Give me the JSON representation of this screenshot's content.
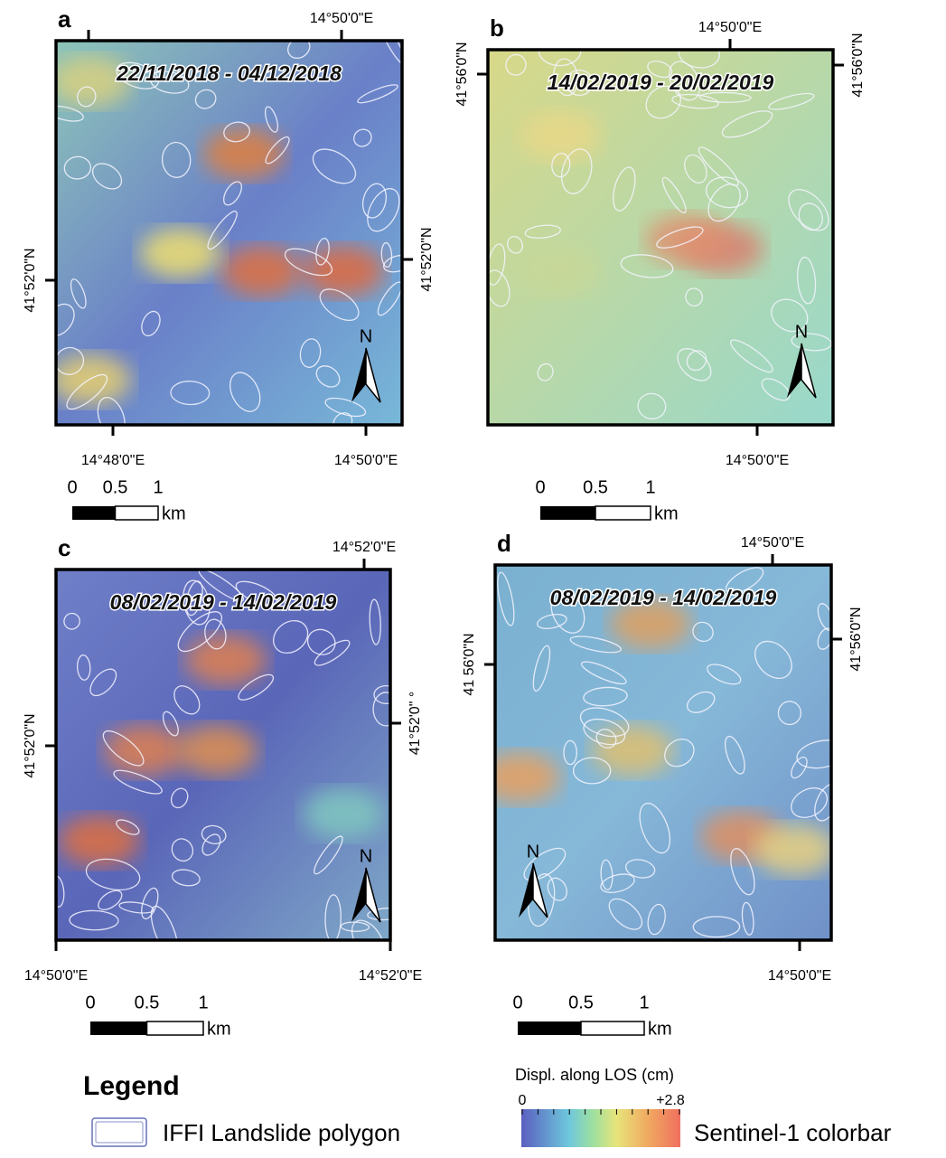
{
  "panels": [
    {
      "letter": "a",
      "date": "22/11/2018 - 04/12/2018",
      "top": [
        "14°50'0\"E"
      ],
      "bottom": [
        "14°48'0\"E",
        "14°50'0\"E"
      ],
      "left": [
        "41°52'0\"N"
      ],
      "right": [
        "41°52'0\"N"
      ]
    },
    {
      "letter": "b",
      "date": "14/02/2019 - 20/02/2019",
      "top": [
        "14°50'0\"E"
      ],
      "bottom": [
        "14°50'0\"E"
      ],
      "left": [
        "41°56'0\"N"
      ],
      "right": [
        "41°56'0\"N"
      ]
    },
    {
      "letter": "c",
      "date": "08/02/2019 - 14/02/2019",
      "top": [
        "14°52'0\"E"
      ],
      "bottom": [
        "14°50'0\"E",
        "14°52'0\"E"
      ],
      "left": [
        "41°52'0\"N"
      ],
      "right": [
        "41°52'0\" °"
      ]
    },
    {
      "letter": "d",
      "date": "08/02/2019 -  14/02/2019",
      "top": [
        "14°50'0\"E"
      ],
      "bottom": [
        "14°50'0\"E"
      ],
      "left": [
        "41 56'0\"N"
      ],
      "right": [
        "41°56'0\"N"
      ]
    }
  ],
  "north": "N",
  "scale_bar": {
    "ticks": [
      "0",
      "0.5",
      "1"
    ],
    "unit": "km"
  },
  "legend": {
    "title": "Legend",
    "polygon": "IFFI Landslide polygon"
  },
  "colorbar": {
    "title": "Displ. along LOS (cm)",
    "min": "0",
    "max": "+2.8",
    "label": "Sentinel-1 colorbar"
  }
}
